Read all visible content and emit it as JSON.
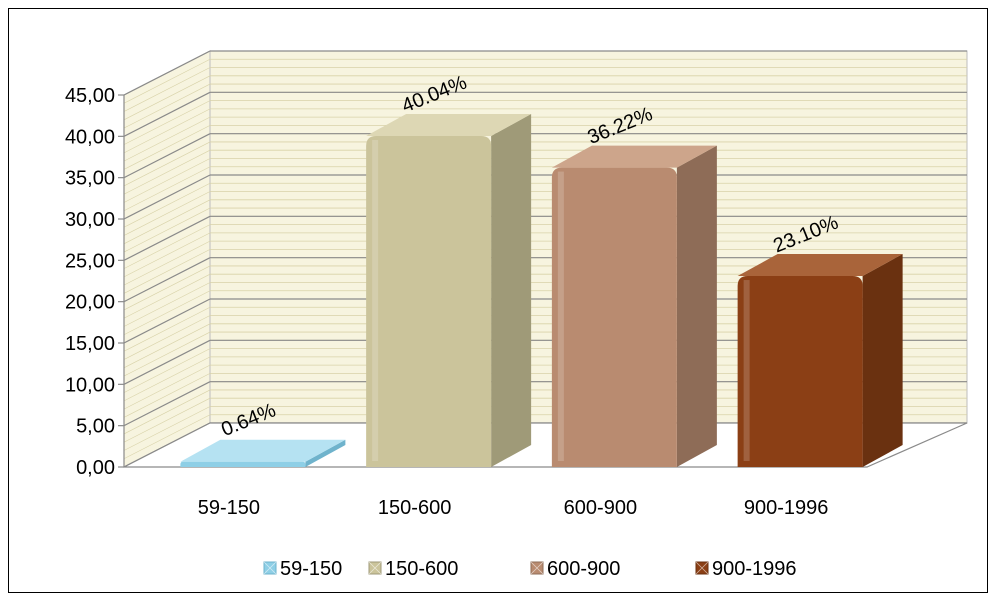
{
  "chart_data": {
    "type": "bar",
    "style": "3d-column",
    "categories": [
      "59-150",
      "150-600",
      "600-900",
      "900-1996"
    ],
    "values": [
      0.64,
      40.04,
      36.22,
      23.1
    ],
    "data_labels": [
      "0.64%",
      "40.04%",
      "36.22%",
      "23.10%"
    ],
    "colors": [
      "#8ecfe6",
      "#cbc49b",
      "#b98b70",
      "#8b3f15"
    ],
    "side_colors": [
      "#6fb3cc",
      "#9f9a78",
      "#8e6c57",
      "#6a3110"
    ],
    "top_colors": [
      "#b5e2f2",
      "#ddd7b4",
      "#cda58b",
      "#a9643a"
    ],
    "y_tick_labels": [
      "0,00",
      "5,00",
      "10,00",
      "15,00",
      "20,00",
      "25,00",
      "30,00",
      "35,00",
      "40,00",
      "45,00"
    ],
    "ylim": [
      0,
      45
    ],
    "y_step": 5,
    "grid": true,
    "wall_color": "#f7f4df",
    "grid_color": "#d8d2a8",
    "legend_position": "bottom",
    "legend": [
      "59-150",
      "150-600",
      "600-900",
      "900-1996"
    ],
    "title": "",
    "xlabel": "",
    "ylabel": ""
  }
}
